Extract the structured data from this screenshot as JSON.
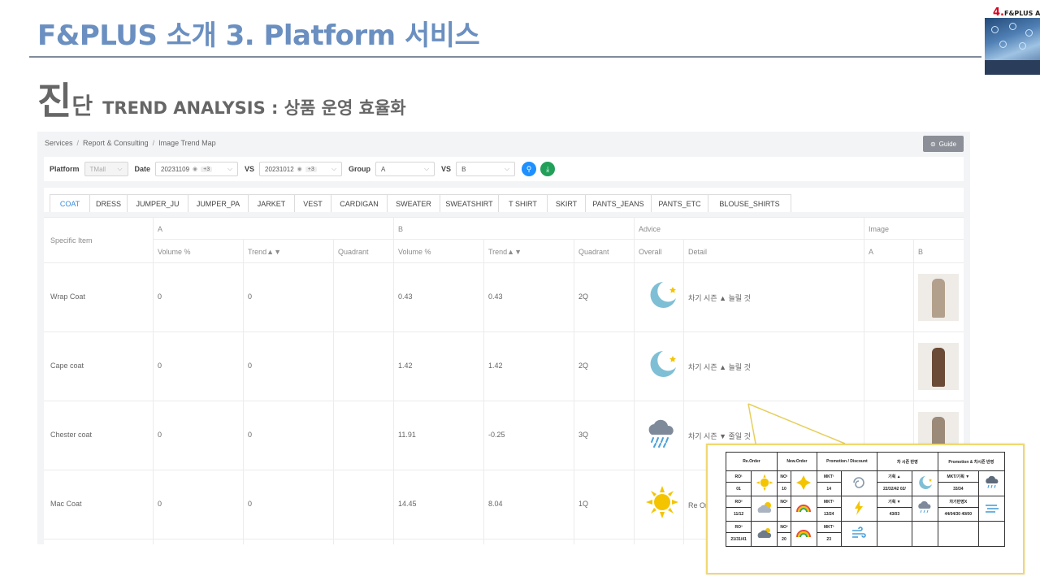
{
  "slide": {
    "title": "F&PLUS 소개 3. Platform 서비스",
    "logo_num": "4.",
    "logo_text": "F&PLUS AI",
    "subtitle_big": "진",
    "subtitle_mid": "단",
    "subtitle_text": "TREND ANALYSIS : 상품 운영 효율화"
  },
  "breadcrumb": [
    "Services",
    "Report & Consulting",
    "Image Trend Map"
  ],
  "breadcrumb_sep": "/",
  "guide_button": "Guide",
  "filters": {
    "platform_label": "Platform",
    "platform_value": "TMall",
    "date_label": "Date",
    "date_a": "20231109",
    "date_a_extra": "+3",
    "vs1": "VS",
    "date_b": "20231012",
    "date_b_extra": "+3",
    "group_label": "Group",
    "group_a": "A",
    "vs2": "VS",
    "group_b": "B"
  },
  "tabs": [
    "COAT",
    "DRESS",
    "JUMPER_JU",
    "JUMPER_PA",
    "JARKET",
    "VEST",
    "CARDIGAN",
    "SWEATER",
    "SWEATSHIRT",
    "T SHIRT",
    "SKIRT",
    "PANTS_JEANS",
    "PANTS_ETC",
    "BLOUSE_SHIRTS"
  ],
  "table": {
    "specific_item": "Specific Item",
    "group_a": "A",
    "group_b": "B",
    "advice": "Advice",
    "image": "Image",
    "volume": "Volume %",
    "trend": "Trend▲▼",
    "quadrant": "Quadrant",
    "overall": "Overall",
    "detail": "Detail",
    "img_a": "A",
    "img_b": "B",
    "rows": [
      {
        "item": "Wrap Coat",
        "a_volume": "0",
        "a_trend": "0",
        "a_quadrant": "",
        "b_volume": "0.43",
        "b_trend": "0.43",
        "b_quadrant": "2Q",
        "overall_icon": "moon-icon",
        "detail": "차기 시즌 ▲ 늘릴 것"
      },
      {
        "item": "Cape coat",
        "a_volume": "0",
        "a_trend": "0",
        "a_quadrant": "",
        "b_volume": "1.42",
        "b_trend": "1.42",
        "b_quadrant": "2Q",
        "overall_icon": "moon-icon",
        "detail": "차기 시즌 ▲ 늘릴 것"
      },
      {
        "item": "Chester coat",
        "a_volume": "0",
        "a_trend": "0",
        "a_quadrant": "",
        "b_volume": "11.91",
        "b_trend": "-0.25",
        "b_quadrant": "3Q",
        "overall_icon": "rain-cloud-icon",
        "detail": "차기 시즌 ▼ 줄일 것"
      },
      {
        "item": "Mac Coat",
        "a_volume": "0",
        "a_trend": "0",
        "a_quadrant": "",
        "b_volume": "14.45",
        "b_trend": "8.04",
        "b_quadrant": "1Q",
        "overall_icon": "sun-icon",
        "detail": "Re Order 시"
      }
    ]
  },
  "legend": {
    "headers": [
      "Re.Order",
      "New.Order",
      "Promotion / Discount",
      "차 시즌 반영",
      "Promotion & 차시즌 반영"
    ],
    "r1": [
      "RO¹",
      "NO¹",
      "MKT¹",
      "기획 ▲",
      "MKT/기획 ▼"
    ],
    "r1v": [
      "01",
      "10",
      "14",
      "22/32/42 02/",
      "33/34"
    ],
    "r2": [
      "RO²",
      "NO²",
      "MKT²",
      "기획 ▼",
      "차기반영X"
    ],
    "r2v": [
      "11/12",
      "",
      "13/24",
      "43/03",
      "44/04/30 40/00"
    ],
    "r3": [
      "RO³",
      "NO³",
      "MKT³"
    ],
    "r3v": [
      "21/31/41",
      "20",
      "23"
    ]
  },
  "colors": {
    "title_blue": "#6a8fc0",
    "active_tab": "#3a8ad8",
    "search_button": "#1e90ff",
    "download_button": "#22a05a",
    "moon": "#7fbfd6",
    "sun": "#f4c400",
    "callout_border": "#f0d870"
  }
}
